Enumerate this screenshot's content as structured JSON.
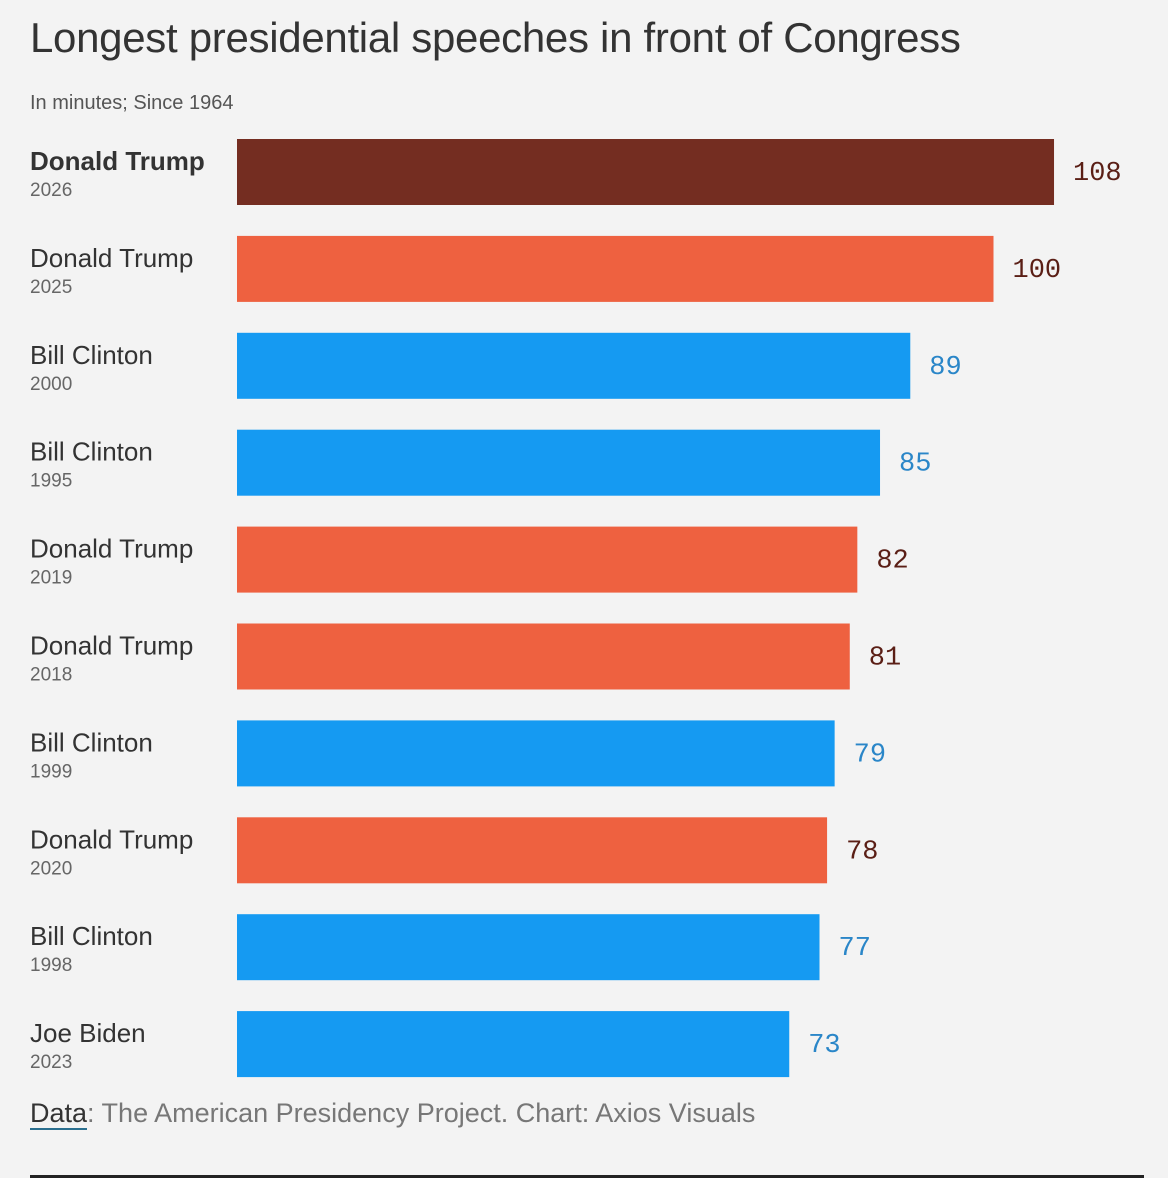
{
  "title": "Longest presidential speeches in front of Congress",
  "subtitle": "In minutes; Since 1964",
  "source": {
    "label": "Data",
    "text": ": The American Presidency Project. Chart: Axios Visuals"
  },
  "colors": {
    "highlight": "#742d21",
    "republican": "#ee6140",
    "democrat": "#159af2",
    "republican_label": "#5a1e15",
    "democrat_label": "#2a86c8"
  },
  "chart_data": {
    "type": "bar",
    "orientation": "horizontal",
    "title": "Longest presidential speeches in front of Congress",
    "subtitle": "In minutes; Since 1964",
    "grid": false,
    "bars": [
      {
        "name": "Donald Trump",
        "year": "2026",
        "value": 108,
        "party": "highlight"
      },
      {
        "name": "Donald Trump",
        "year": "2025",
        "value": 100,
        "party": "republican"
      },
      {
        "name": "Bill Clinton",
        "year": "2000",
        "value": 89,
        "party": "democrat"
      },
      {
        "name": "Bill Clinton",
        "year": "1995",
        "value": 85,
        "party": "democrat"
      },
      {
        "name": "Donald Trump",
        "year": "2019",
        "value": 82,
        "party": "republican"
      },
      {
        "name": "Donald Trump",
        "year": "2018",
        "value": 81,
        "party": "republican"
      },
      {
        "name": "Bill Clinton",
        "year": "1999",
        "value": 79,
        "party": "democrat"
      },
      {
        "name": "Donald Trump",
        "year": "2020",
        "value": 78,
        "party": "republican"
      },
      {
        "name": "Bill Clinton",
        "year": "1998",
        "value": 77,
        "party": "democrat"
      },
      {
        "name": "Joe Biden",
        "year": "2023",
        "value": 73,
        "party": "democrat"
      }
    ]
  }
}
